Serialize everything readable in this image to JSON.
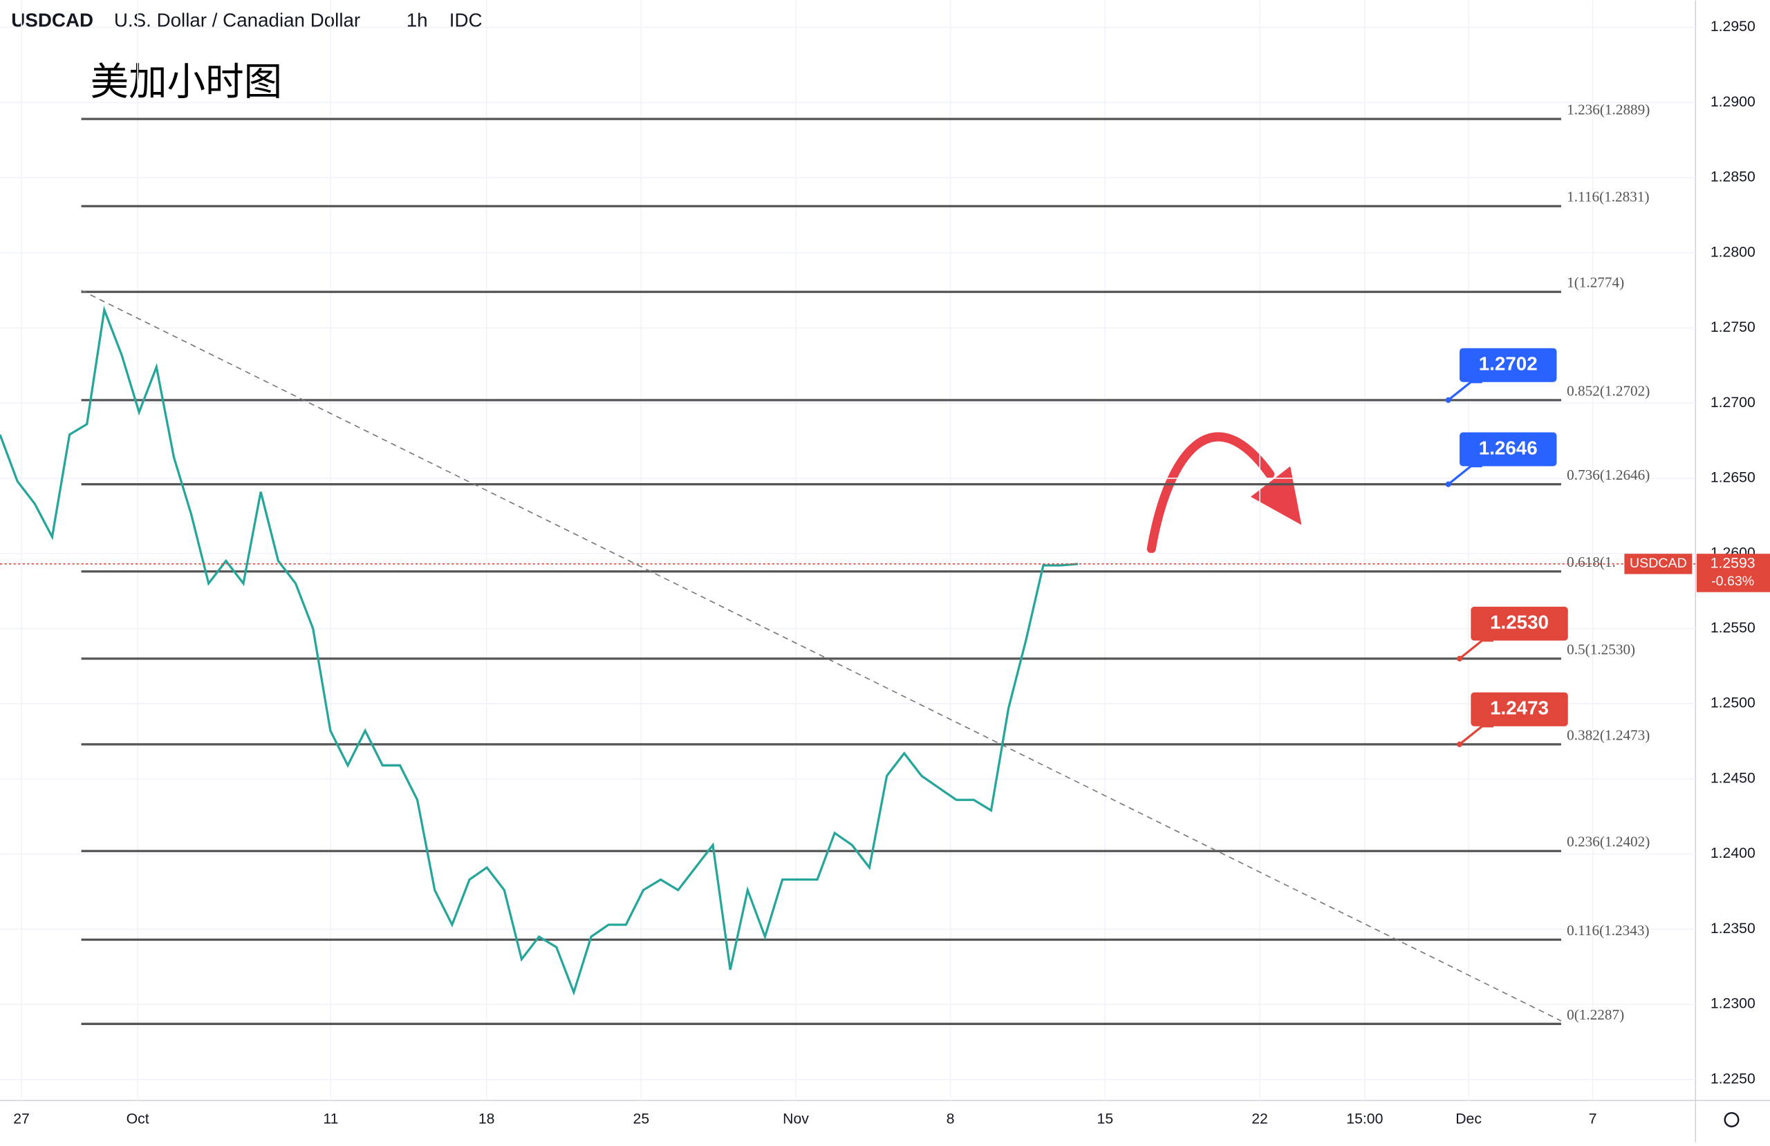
{
  "chart_data": {
    "type": "line",
    "symbol": "USDCAD",
    "name": "U.S. Dollar / Canadian Dollar",
    "interval": "1h",
    "source": "IDC",
    "title": "美加小时图",
    "xticks": [
      "27",
      "Oct",
      "11",
      "18",
      "25",
      "Nov",
      "8",
      "15",
      "22",
      "15:00",
      "Dec",
      "7"
    ],
    "series": [
      {
        "name": "USDCAD",
        "color": "#26a69a",
        "values": [
          1.2679,
          1.2648,
          1.2633,
          1.2611,
          1.2679,
          1.2686,
          1.2762,
          1.2732,
          1.2694,
          1.2724,
          1.2664,
          1.2626,
          1.258,
          1.2595,
          1.258,
          1.2641,
          1.2595,
          1.258,
          1.255,
          1.2482,
          1.2459,
          1.2482,
          1.2459,
          1.2459,
          1.2436,
          1.2376,
          1.2353,
          1.2383,
          1.2391,
          1.2376,
          1.233,
          1.2345,
          1.2338,
          1.2308,
          1.2345,
          1.2353,
          1.2353,
          1.2376,
          1.2383,
          1.2376,
          1.2391,
          1.2406,
          1.2323,
          1.2376,
          1.2345,
          1.2383,
          1.2383,
          1.2383,
          1.2414,
          1.2406,
          1.2391,
          1.2452,
          1.2467,
          1.2452,
          1.2444,
          1.2436,
          1.2436,
          1.2429,
          1.2497,
          1.2542,
          1.2592,
          1.2592,
          1.2593
        ]
      }
    ],
    "ylim": [
      1.2236,
      1.2968
    ],
    "yticks": [
      {
        "value": 1.225,
        "label": "1.2250"
      },
      {
        "value": 1.23,
        "label": "1.2300"
      },
      {
        "value": 1.235,
        "label": "1.2350"
      },
      {
        "value": 1.24,
        "label": "1.2400"
      },
      {
        "value": 1.245,
        "label": "1.2450"
      },
      {
        "value": 1.25,
        "label": "1.2500"
      },
      {
        "value": 1.255,
        "label": "1.2550"
      },
      {
        "value": 1.26,
        "label": "1.2600"
      },
      {
        "value": 1.265,
        "label": "1.2650"
      },
      {
        "value": 1.27,
        "label": "1.2700"
      },
      {
        "value": 1.275,
        "label": "1.2750"
      },
      {
        "value": 1.28,
        "label": "1.2800"
      },
      {
        "value": 1.285,
        "label": "1.2850"
      },
      {
        "value": 1.29,
        "label": "1.2900"
      },
      {
        "value": 1.295,
        "label": "1.2950"
      }
    ],
    "fib_levels": {
      "values": [
        1.2889,
        1.2831,
        1.2774,
        1.2702,
        1.2646,
        1.2588,
        1.253,
        1.2473,
        1.2402,
        1.2343,
        1.2287
      ],
      "value_labels": [
        "1.236(1.2889)",
        "1.116(1.2831)",
        "1(1.2774)",
        "0.852(1.2702)",
        "0.736(1.2646)",
        "0.618(1.",
        "0.5(1.2530)",
        "0.382(1.2473)",
        "0.236(1.2402)",
        "0.116(1.2343)",
        "0(1.2287)"
      ]
    },
    "price_tags": [
      {
        "value": 1.2702,
        "label": "1.2702",
        "color": "#2962ff"
      },
      {
        "value": 1.2646,
        "label": "1.2646",
        "color": "#2962ff"
      },
      {
        "value": 1.253,
        "label": "1.2530",
        "color": "#e0463a"
      },
      {
        "value": 1.2473,
        "label": "1.2473",
        "color": "#e0463a"
      }
    ],
    "trendline": [
      1.2775,
      1.2289
    ],
    "last_price": {
      "value": 1.2593,
      "label": "1.2593",
      "change": {
        "value": -0.63,
        "label": "-0.63%"
      },
      "color": "#e0463a"
    }
  }
}
